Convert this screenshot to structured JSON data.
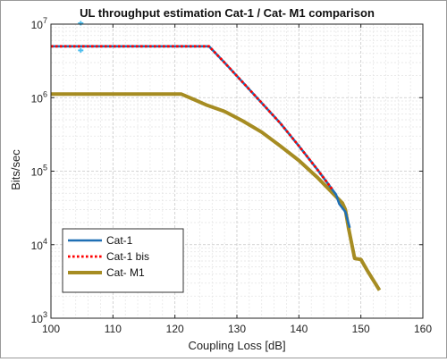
{
  "colors": {
    "cat1": "#1f6fb4",
    "cat1_bis": "#ff0000",
    "cat_m1": "#a68c22",
    "marker": "#4dbeee",
    "grid_major": "#c8c8c8",
    "grid_minor": "#e4e4e4",
    "axis": "#222222"
  },
  "chart_data": {
    "type": "line",
    "title": "UL throughput estimation Cat-1 / Cat- M1 comparison",
    "xlabel": "Coupling Loss [dB]",
    "ylabel": "Bits/sec",
    "xlim": [
      100,
      160
    ],
    "ylim": [
      1000,
      10000000
    ],
    "yscale": "log",
    "grid": true,
    "legend_position": "bottom-left",
    "x_ticks": [
      100,
      110,
      120,
      130,
      140,
      150,
      160
    ],
    "x_tick_labels": [
      "100",
      "110",
      "120",
      "130",
      "140",
      "150",
      "160"
    ],
    "y_ticks": [
      1000,
      10000,
      100000,
      1000000,
      10000000
    ],
    "y_tick_labels": [
      {
        "base": "10",
        "exp": "3"
      },
      {
        "base": "10",
        "exp": "4"
      },
      {
        "base": "10",
        "exp": "5"
      },
      {
        "base": "10",
        "exp": "6"
      },
      {
        "base": "10",
        "exp": "7"
      }
    ],
    "series": [
      {
        "name": "Cat-1",
        "style": "solid",
        "x": [
          100,
          110,
          120,
          125.5,
          128,
          131,
          134,
          137,
          140,
          143,
          146,
          146.5,
          147.5,
          148.2
        ],
        "y": [
          5000000,
          5000000,
          5000000,
          5000000,
          3000000,
          1600000,
          850000,
          450000,
          220000,
          105000,
          48000,
          36000,
          28000,
          17000
        ]
      },
      {
        "name": "Cat-1 bis",
        "style": "dotted",
        "x": [
          100,
          110,
          120,
          125.5,
          128,
          131,
          134,
          137,
          140,
          143,
          145.5
        ],
        "y": [
          5000000,
          5000000,
          5000000,
          5000000,
          3000000,
          1600000,
          850000,
          450000,
          220000,
          105000,
          55000
        ]
      },
      {
        "name": "Cat- M1",
        "style": "solid-thick",
        "x": [
          100,
          110,
          121,
          123,
          125,
          128,
          131,
          134,
          137,
          140,
          143,
          145,
          146,
          147,
          147.5,
          148,
          149,
          150,
          151,
          153
        ],
        "y": [
          1120000,
          1120000,
          1120000,
          950000,
          800000,
          650000,
          480000,
          340000,
          220000,
          140000,
          82000,
          55000,
          45000,
          37000,
          30000,
          17000,
          6500,
          6300,
          4500,
          2400
        ]
      }
    ],
    "markers": [
      {
        "x": 104.8,
        "y": 10300000
      },
      {
        "x": 104.8,
        "y": 4400000
      }
    ]
  }
}
